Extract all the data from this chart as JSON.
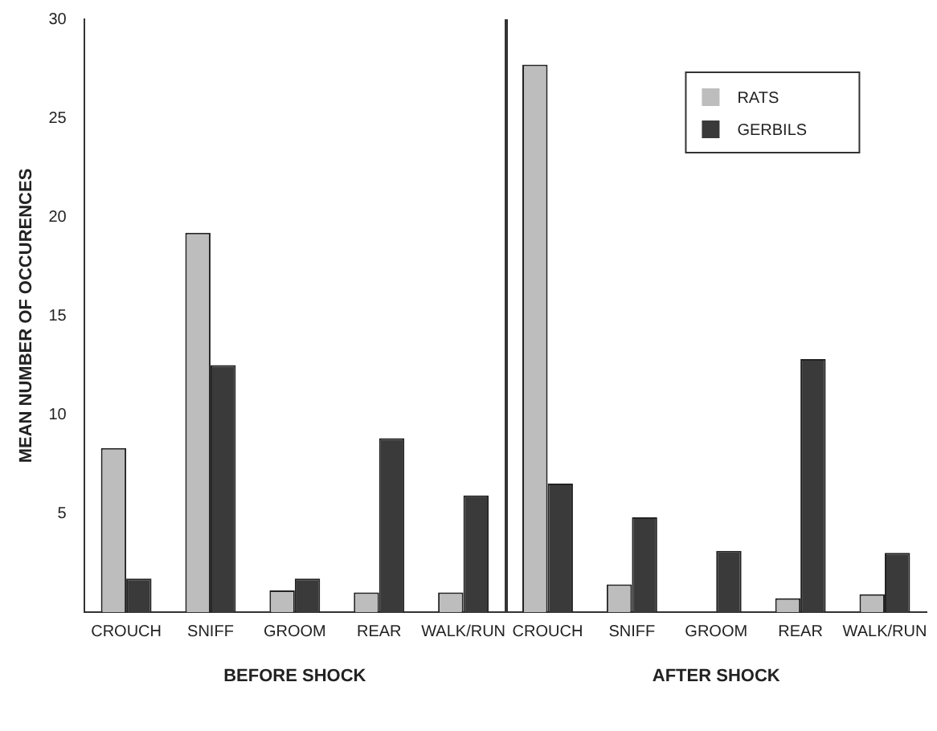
{
  "chart_data": {
    "type": "bar",
    "ylabel": "MEAN NUMBER OF OCCURENCES",
    "categories": [
      "CROUCH",
      "SNIFF",
      "GROOM",
      "REAR",
      "WALK/RUN",
      "CROUCH",
      "SNIFF",
      "GROOM",
      "REAR",
      "WALK/RUN"
    ],
    "series": [
      {
        "name": "RATS",
        "color": "#bdbdbd",
        "values": [
          8.3,
          19.2,
          1.1,
          1.0,
          1.0,
          27.7,
          1.4,
          0,
          0.7,
          0.9
        ]
      },
      {
        "name": "GERBILS",
        "color": "#3a3a3a",
        "values": [
          1.7,
          12.5,
          1.7,
          8.8,
          5.9,
          6.5,
          4.8,
          3.1,
          12.8,
          3.0
        ]
      }
    ],
    "ylim": [
      0,
      30
    ],
    "yticks": [
      5,
      10,
      15,
      20,
      25,
      30
    ],
    "grid": false,
    "legend": "top right",
    "annotations": [
      "BEFORE SHOCK",
      "AFTER SHOCK"
    ]
  }
}
